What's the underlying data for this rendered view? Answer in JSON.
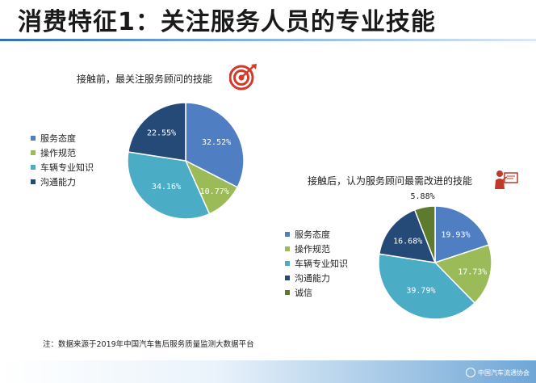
{
  "title": "消费特征1：关注服务人员的专业技能",
  "footnote": "注：数据来源于2019年中国汽车售后服务质量监测大数据平台",
  "org_logo_text": "中国汽车流通协会",
  "icons": {
    "chart1": "target-icon",
    "chart2": "presenter-icon"
  },
  "chart_data": [
    {
      "type": "pie",
      "title": "接触前，最关注服务顾问的技能",
      "categories": [
        "服务态度",
        "操作规范",
        "车辆专业知识",
        "沟通能力"
      ],
      "values": [
        32.52,
        10.77,
        34.16,
        22.55
      ],
      "labels": [
        "32.52%",
        "10.77%",
        "34.16%",
        "22.55%"
      ],
      "colors": [
        "#4f7ec2",
        "#9bbb59",
        "#4bacc6",
        "#264a78"
      ],
      "legend_position": "left"
    },
    {
      "type": "pie",
      "title": "接触后，认为服务顾问最需改进的技能",
      "categories": [
        "服务态度",
        "操作规范",
        "车辆专业知识",
        "沟通能力",
        "诚信"
      ],
      "values": [
        19.93,
        17.73,
        39.79,
        16.68,
        5.88
      ],
      "labels": [
        "19.93%",
        "17.73%",
        "39.79%",
        "16.68%",
        "5.88%"
      ],
      "colors": [
        "#4f7ec2",
        "#9bbb59",
        "#4bacc6",
        "#264a78",
        "#5d7a2f"
      ],
      "legend_position": "left"
    }
  ]
}
